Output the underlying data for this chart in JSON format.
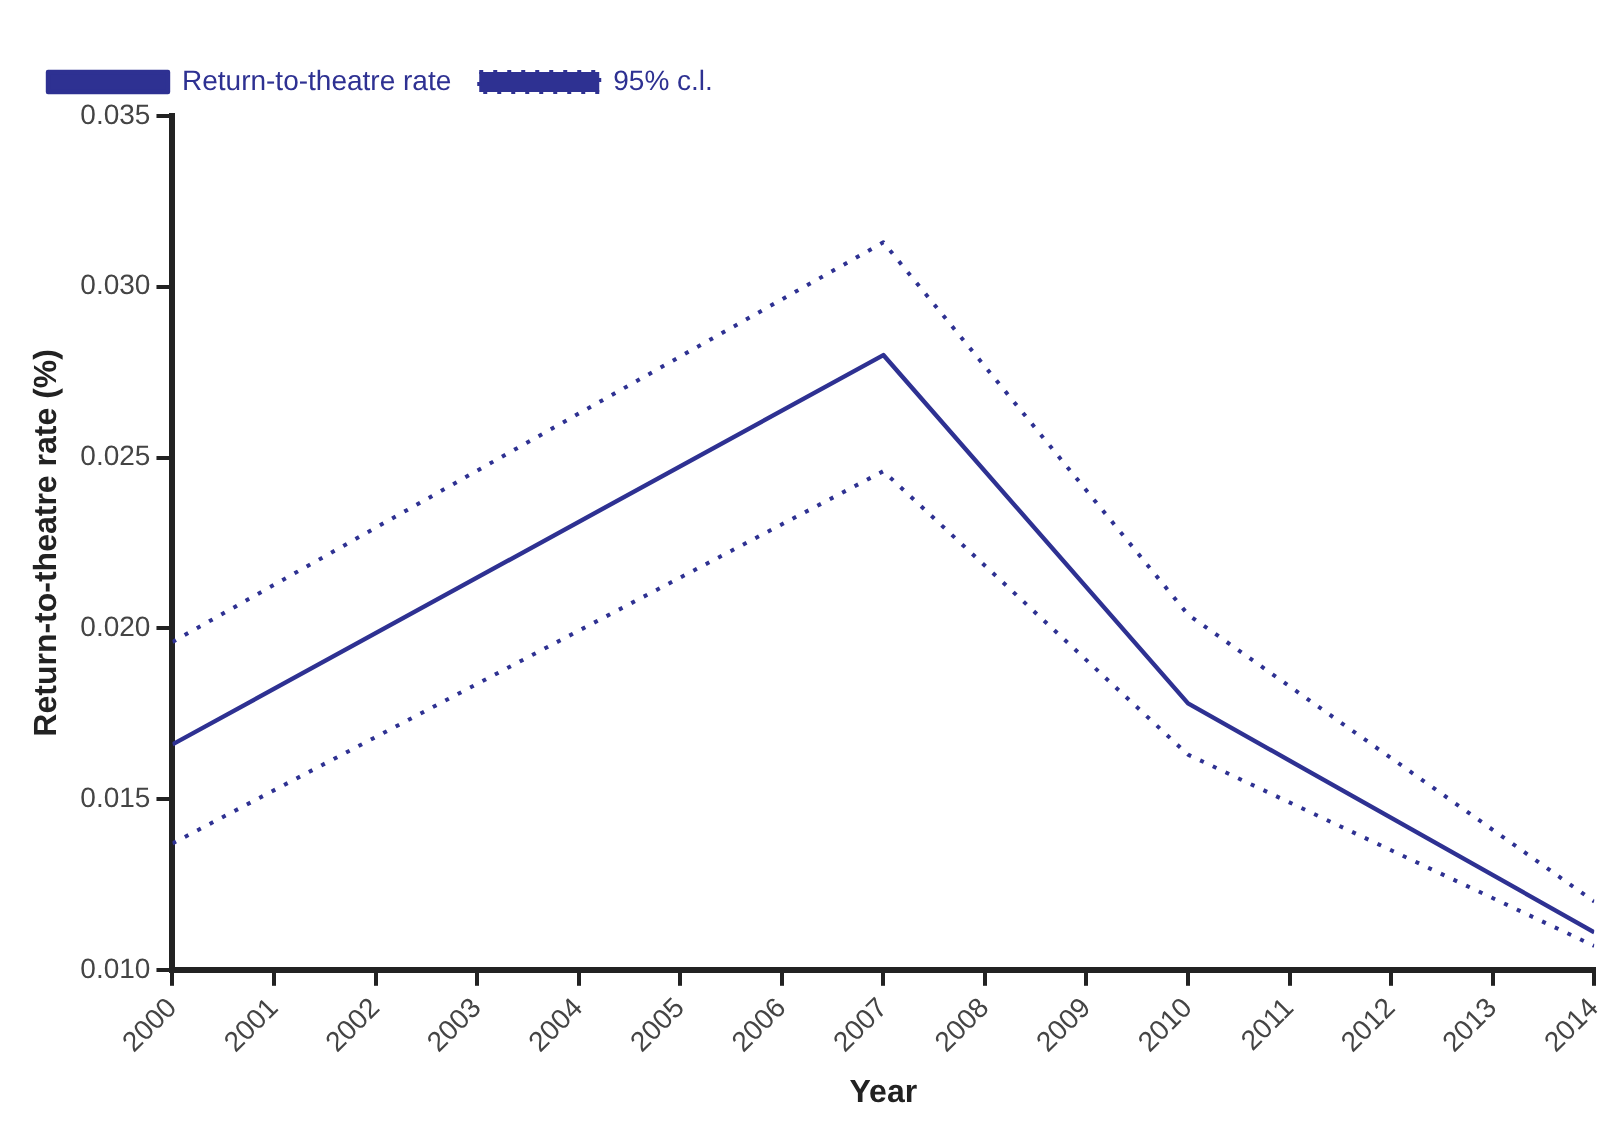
{
  "chart_data": {
    "type": "line",
    "xlabel": "Year",
    "ylabel": "Return-to-theatre rate (%)",
    "xlim": [
      2000,
      2014
    ],
    "xticks": [
      2000,
      2001,
      2002,
      2003,
      2004,
      2005,
      2006,
      2007,
      2008,
      2009,
      2010,
      2011,
      2012,
      2013,
      2014
    ],
    "ylim": [
      0.01,
      0.035
    ],
    "yticks": [
      {
        "value": 0.01,
        "label": "0.010"
      },
      {
        "value": 0.015,
        "label": "0.015"
      },
      {
        "value": 0.02,
        "label": "0.020"
      },
      {
        "value": 0.025,
        "label": "0.025"
      },
      {
        "value": 0.03,
        "label": "0.030"
      },
      {
        "value": 0.035,
        "label": "0.035"
      }
    ],
    "grid": false,
    "legend": "top left",
    "marker": "none",
    "series": [
      {
        "name": "Return-to-theatre rate",
        "color": "#2e3192",
        "line_style": "solid",
        "x": [
          2000,
          2007,
          2010,
          2014
        ],
        "values": [
          0.0166,
          0.028,
          0.0178,
          0.0111
        ]
      },
      {
        "name": "95% c.l.",
        "color": "#2e3192",
        "line_style": "dotted",
        "x": [
          2000,
          2007,
          2010,
          2014
        ],
        "values": [
          0.0196,
          0.0313,
          0.0204,
          0.012
        ]
      },
      {
        "color": "#2e3192",
        "line_style": "dotted",
        "x": [
          2000,
          2007,
          2010,
          2014
        ],
        "values": [
          0.0137,
          0.0246,
          0.0163,
          0.0107
        ]
      }
    ]
  }
}
